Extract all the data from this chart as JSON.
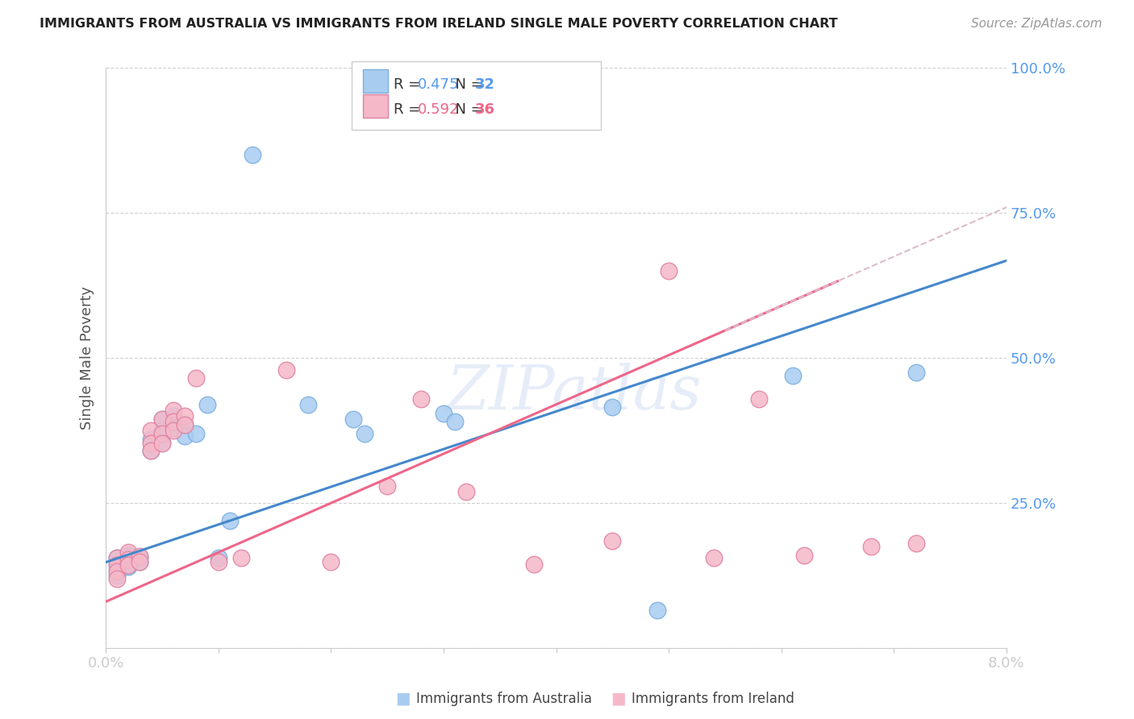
{
  "title": "IMMIGRANTS FROM AUSTRALIA VS IMMIGRANTS FROM IRELAND SINGLE MALE POVERTY CORRELATION CHART",
  "source": "Source: ZipAtlas.com",
  "ylabel": "Single Male Poverty",
  "xlim": [
    0.0,
    0.08
  ],
  "ylim": [
    0.0,
    1.0
  ],
  "xticks": [
    0.0,
    0.01,
    0.02,
    0.03,
    0.04,
    0.05,
    0.06,
    0.07,
    0.08
  ],
  "xticklabels": [
    "0.0%",
    "",
    "",
    "",
    "",
    "",
    "",
    "",
    "8.0%"
  ],
  "yticks": [
    0.0,
    0.25,
    0.5,
    0.75,
    1.0
  ],
  "yticklabels": [
    "",
    "25.0%",
    "50.0%",
    "75.0%",
    "100.0%"
  ],
  "australia_color": "#A8CCF0",
  "australia_edge": "#7AAEE0",
  "ireland_color": "#F5B8C8",
  "ireland_edge": "#E080A0",
  "australia_R": 0.475,
  "australia_N": 32,
  "ireland_R": 0.592,
  "ireland_N": 36,
  "watermark": "ZIPatlas",
  "australia_points": [
    [
      0.001,
      0.155
    ],
    [
      0.001,
      0.145
    ],
    [
      0.001,
      0.135
    ],
    [
      0.001,
      0.125
    ],
    [
      0.002,
      0.16
    ],
    [
      0.002,
      0.15
    ],
    [
      0.002,
      0.14
    ],
    [
      0.003,
      0.155
    ],
    [
      0.003,
      0.148
    ],
    [
      0.004,
      0.36
    ],
    [
      0.004,
      0.34
    ],
    [
      0.005,
      0.395
    ],
    [
      0.005,
      0.375
    ],
    [
      0.005,
      0.355
    ],
    [
      0.006,
      0.4
    ],
    [
      0.006,
      0.38
    ],
    [
      0.007,
      0.385
    ],
    [
      0.007,
      0.365
    ],
    [
      0.008,
      0.37
    ],
    [
      0.009,
      0.42
    ],
    [
      0.01,
      0.155
    ],
    [
      0.011,
      0.22
    ],
    [
      0.013,
      0.85
    ],
    [
      0.018,
      0.42
    ],
    [
      0.022,
      0.395
    ],
    [
      0.023,
      0.37
    ],
    [
      0.03,
      0.405
    ],
    [
      0.031,
      0.39
    ],
    [
      0.045,
      0.415
    ],
    [
      0.049,
      0.065
    ],
    [
      0.061,
      0.47
    ],
    [
      0.072,
      0.475
    ]
  ],
  "ireland_points": [
    [
      0.001,
      0.155
    ],
    [
      0.001,
      0.143
    ],
    [
      0.001,
      0.132
    ],
    [
      0.001,
      0.12
    ],
    [
      0.002,
      0.165
    ],
    [
      0.002,
      0.153
    ],
    [
      0.002,
      0.143
    ],
    [
      0.003,
      0.158
    ],
    [
      0.003,
      0.148
    ],
    [
      0.004,
      0.375
    ],
    [
      0.004,
      0.353
    ],
    [
      0.004,
      0.34
    ],
    [
      0.005,
      0.395
    ],
    [
      0.005,
      0.37
    ],
    [
      0.005,
      0.353
    ],
    [
      0.006,
      0.41
    ],
    [
      0.006,
      0.39
    ],
    [
      0.006,
      0.375
    ],
    [
      0.007,
      0.4
    ],
    [
      0.007,
      0.385
    ],
    [
      0.008,
      0.465
    ],
    [
      0.01,
      0.148
    ],
    [
      0.012,
      0.155
    ],
    [
      0.016,
      0.48
    ],
    [
      0.02,
      0.148
    ],
    [
      0.025,
      0.28
    ],
    [
      0.028,
      0.43
    ],
    [
      0.032,
      0.27
    ],
    [
      0.038,
      0.145
    ],
    [
      0.045,
      0.185
    ],
    [
      0.05,
      0.65
    ],
    [
      0.054,
      0.155
    ],
    [
      0.058,
      0.43
    ],
    [
      0.062,
      0.16
    ],
    [
      0.068,
      0.175
    ],
    [
      0.072,
      0.18
    ]
  ],
  "title_color": "#222222",
  "source_color": "#999999",
  "axis_label_color": "#555555",
  "tick_color": "#5599EE",
  "grid_color": "#CCCCCC",
  "trend_australia_color": "#4488CC",
  "trend_ireland_color": "#EE6688",
  "trend_dashed_color": "#DDBBCC"
}
